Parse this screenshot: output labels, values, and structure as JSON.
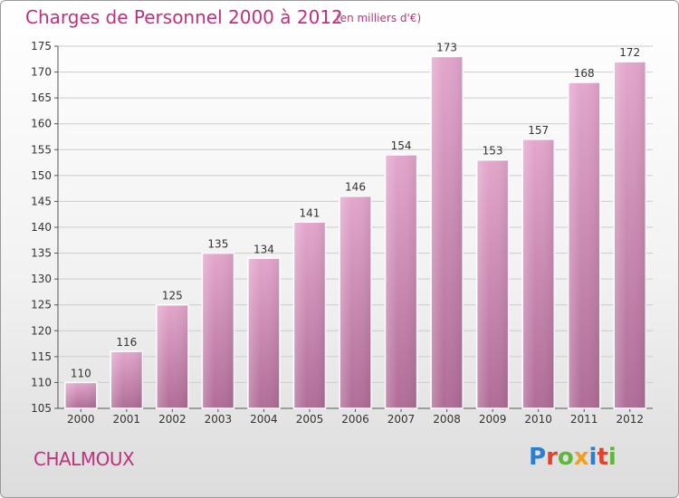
{
  "header": {
    "title": "Charges de Personnel 2000 à 2012",
    "subtitle": "(en milliers d'€)"
  },
  "footer": {
    "city": "CHALMOUX",
    "logo_text": "Proxiti",
    "logo_colors": [
      "#2a7fd4",
      "#e8402a",
      "#5db83a",
      "#f0a020",
      "#2a7fd4",
      "#e8402a",
      "#5db83a"
    ]
  },
  "chart_data": {
    "type": "bar",
    "title": "Charges de Personnel 2000 à 2012",
    "subtitle": "(en milliers d'€)",
    "categories": [
      "2000",
      "2001",
      "2002",
      "2003",
      "2004",
      "2005",
      "2006",
      "2007",
      "2008",
      "2009",
      "2010",
      "2011",
      "2012"
    ],
    "values": [
      110,
      116,
      125,
      135,
      134,
      141,
      146,
      154,
      173,
      153,
      157,
      168,
      172
    ],
    "ylim": [
      105,
      175
    ],
    "yticks": [
      105,
      110,
      115,
      120,
      125,
      130,
      135,
      140,
      145,
      150,
      155,
      160,
      165,
      170,
      175
    ],
    "grid": true,
    "bar_color_top": "#e3a6cc",
    "bar_color_bottom": "#b06c97",
    "grid_color": "#cccccc"
  }
}
